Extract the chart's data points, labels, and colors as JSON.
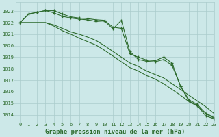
{
  "background_color": "#cce8e8",
  "grid_color": "#aacccc",
  "line_color": "#2d6b2d",
  "title": "Graphe pression niveau de la mer (hPa)",
  "xlim": [
    -0.5,
    23
  ],
  "ylim": [
    1013.5,
    1023.8
  ],
  "yticks": [
    1014,
    1015,
    1016,
    1017,
    1018,
    1019,
    1020,
    1021,
    1022,
    1023
  ],
  "xticks": [
    0,
    1,
    2,
    3,
    4,
    5,
    6,
    7,
    8,
    9,
    10,
    11,
    12,
    13,
    14,
    15,
    16,
    17,
    18,
    19,
    20,
    21,
    22,
    23
  ],
  "line1_marked": [
    1022.0,
    1022.75,
    1022.9,
    1023.05,
    1023.05,
    1022.75,
    1022.5,
    1022.4,
    1022.35,
    1022.25,
    1022.2,
    1021.6,
    1021.5,
    1019.3,
    1019.0,
    1018.75,
    1018.7,
    1019.0,
    1018.5,
    1016.5,
    1015.3,
    1014.9,
    1014.1,
    1013.7
  ],
  "line2_marked": [
    1022.0,
    1022.75,
    1022.9,
    1023.05,
    1022.85,
    1022.55,
    1022.4,
    1022.3,
    1022.25,
    1022.1,
    1022.15,
    1021.45,
    1022.2,
    1019.5,
    1018.8,
    1018.65,
    1018.6,
    1018.8,
    1018.3,
    1016.5,
    1015.2,
    1014.8,
    1013.9,
    1013.65
  ],
  "line3_plain": [
    1022.0,
    1022.0,
    1022.0,
    1022.0,
    1021.8,
    1021.5,
    1021.2,
    1021.0,
    1020.75,
    1020.45,
    1020.0,
    1019.5,
    1019.0,
    1018.5,
    1018.2,
    1017.8,
    1017.5,
    1017.2,
    1016.7,
    1016.2,
    1015.7,
    1015.2,
    1014.7,
    1014.1
  ],
  "line4_plain": [
    1022.0,
    1022.0,
    1022.0,
    1022.0,
    1021.7,
    1021.3,
    1021.0,
    1020.65,
    1020.35,
    1020.05,
    1019.6,
    1019.1,
    1018.6,
    1018.1,
    1017.8,
    1017.4,
    1017.1,
    1016.7,
    1016.2,
    1015.7,
    1015.15,
    1014.75,
    1014.15,
    1013.75
  ]
}
